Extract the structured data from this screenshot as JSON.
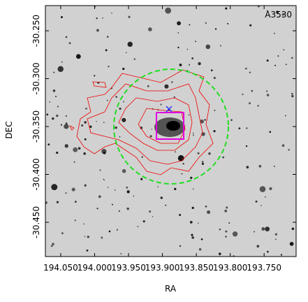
{
  "chart_data": {
    "type": "image",
    "annotation": "A3530",
    "x_label": "RA",
    "y_label": "DEC",
    "xlim": [
      194.0726,
      193.7028
    ],
    "ylim": [
      -30.4858,
      -30.2237
    ],
    "xticks": [
      {
        "value": 194.05,
        "label": "194.050"
      },
      {
        "value": 194.0,
        "label": "194.000"
      },
      {
        "value": 193.95,
        "label": "193.950"
      },
      {
        "value": 193.9,
        "label": "193.900"
      },
      {
        "value": 193.85,
        "label": "193.850"
      },
      {
        "value": 193.8,
        "label": "193.800"
      },
      {
        "value": 193.75,
        "label": "193.750"
      }
    ],
    "yticks": [
      {
        "value": -30.25,
        "label": "-30.250"
      },
      {
        "value": -30.3,
        "label": "-30.300"
      },
      {
        "value": -30.35,
        "label": "-30.350"
      },
      {
        "value": -30.4,
        "label": "-30.400"
      },
      {
        "value": -30.45,
        "label": "-30.450"
      }
    ]
  }
}
